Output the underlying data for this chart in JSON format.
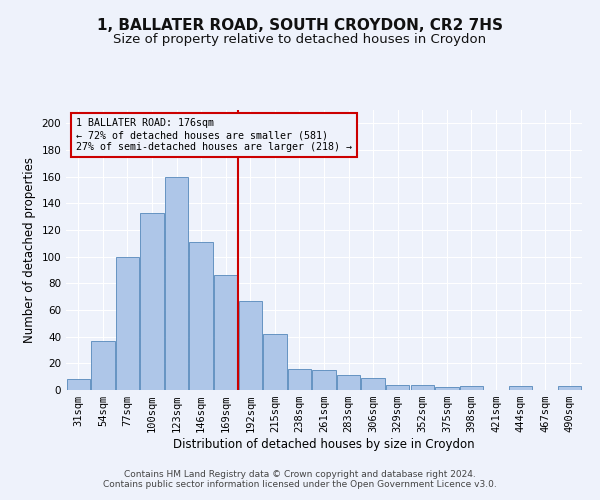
{
  "title": "1, BALLATER ROAD, SOUTH CROYDON, CR2 7HS",
  "subtitle": "Size of property relative to detached houses in Croydon",
  "xlabel": "Distribution of detached houses by size in Croydon",
  "ylabel": "Number of detached properties",
  "bin_labels": [
    "31sqm",
    "54sqm",
    "77sqm",
    "100sqm",
    "123sqm",
    "146sqm",
    "169sqm",
    "192sqm",
    "215sqm",
    "238sqm",
    "261sqm",
    "283sqm",
    "306sqm",
    "329sqm",
    "352sqm",
    "375sqm",
    "398sqm",
    "421sqm",
    "444sqm",
    "467sqm",
    "490sqm"
  ],
  "bar_heights": [
    8,
    37,
    100,
    133,
    160,
    111,
    86,
    67,
    42,
    16,
    15,
    11,
    9,
    4,
    4,
    2,
    3,
    0,
    3,
    0,
    3
  ],
  "bar_color": "#aec6e8",
  "bar_edge_color": "#5588bb",
  "vline_x_index": 7,
  "vline_color": "#cc0000",
  "annotation_text": "1 BALLATER ROAD: 176sqm\n← 72% of detached houses are smaller (581)\n27% of semi-detached houses are larger (218) →",
  "annotation_box_color": "#cc0000",
  "ylim": [
    0,
    210
  ],
  "yticks": [
    0,
    20,
    40,
    60,
    80,
    100,
    120,
    140,
    160,
    180,
    200
  ],
  "footer": "Contains HM Land Registry data © Crown copyright and database right 2024.\nContains public sector information licensed under the Open Government Licence v3.0.",
  "bg_color": "#eef2fb",
  "grid_color": "#ffffff",
  "title_fontsize": 11,
  "subtitle_fontsize": 9.5,
  "axis_label_fontsize": 8.5,
  "tick_fontsize": 7.5,
  "footer_fontsize": 6.5
}
